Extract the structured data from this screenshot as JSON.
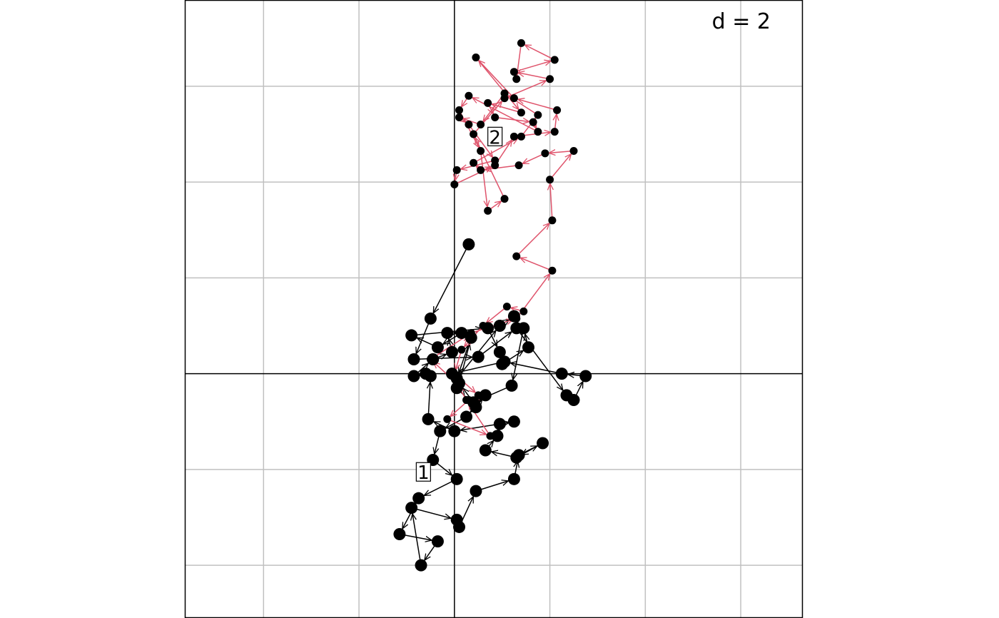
{
  "chart_data": {
    "type": "scatter",
    "grid_label": "d = 2",
    "grid": true,
    "grid_step": 2,
    "xlim": [
      -5.65,
      7.3
    ],
    "ylim": [
      -5.1,
      7.8
    ],
    "colors": {
      "group1": "#000000",
      "group2": "#DF536B",
      "grid": "#C0C0C0",
      "axis": "#000000",
      "frame": "#000000"
    },
    "group_labels": [
      {
        "text": "1",
        "x": -0.65,
        "y": -2.05
      },
      {
        "text": "2",
        "x": 0.85,
        "y": 4.95
      }
    ],
    "series": [
      {
        "group": "1",
        "points": [
          [
            0.3,
            2.7
          ],
          [
            -0.5,
            1.15
          ],
          [
            -0.85,
            0.3
          ],
          [
            0.5,
            0.35
          ],
          [
            1.3,
            0.95
          ],
          [
            2.35,
            -0.45
          ],
          [
            2.5,
            -0.55
          ],
          [
            2.75,
            -0.05
          ],
          [
            2.25,
            0.0
          ],
          [
            1.05,
            0.25
          ],
          [
            -0.05,
            0.0
          ],
          [
            0.05,
            -0.3
          ],
          [
            0.45,
            -0.7
          ],
          [
            0.65,
            -0.45
          ],
          [
            0.25,
            -0.9
          ],
          [
            -0.3,
            -1.2
          ],
          [
            -0.45,
            -1.8
          ],
          [
            0.05,
            -2.2
          ],
          [
            -0.75,
            -2.6
          ],
          [
            -1.15,
            -3.35
          ],
          [
            -0.35,
            -3.5
          ],
          [
            -0.7,
            -4.0
          ],
          [
            -0.9,
            -2.8
          ],
          [
            0.05,
            -3.05
          ],
          [
            0.1,
            -3.2
          ],
          [
            0.45,
            -2.45
          ],
          [
            1.25,
            -2.2
          ],
          [
            1.35,
            -1.7
          ],
          [
            1.85,
            -1.45
          ],
          [
            1.3,
            -1.75
          ],
          [
            0.65,
            -1.6
          ],
          [
            0.9,
            -1.3
          ],
          [
            0.95,
            -1.05
          ],
          [
            1.25,
            -1.0
          ],
          [
            0.0,
            -1.2
          ],
          [
            -0.55,
            -0.95
          ],
          [
            -0.5,
            -0.05
          ],
          [
            -0.6,
            0.0
          ],
          [
            -0.85,
            -0.05
          ],
          [
            -0.45,
            0.3
          ],
          [
            -0.05,
            0.45
          ],
          [
            -0.15,
            0.85
          ],
          [
            0.15,
            0.85
          ],
          [
            -0.35,
            0.55
          ],
          [
            -0.9,
            0.8
          ],
          [
            0.7,
            0.95
          ],
          [
            0.95,
            0.45
          ],
          [
            1.0,
            0.2
          ],
          [
            1.55,
            0.55
          ],
          [
            1.45,
            0.95
          ],
          [
            1.2,
            -0.25
          ],
          [
            0.4,
            -0.6
          ],
          [
            0.1,
            -0.2
          ],
          [
            0.35,
            0.75
          ],
          [
            0.05,
            -0.1
          ],
          [
            0.95,
            1.0
          ],
          [
            1.25,
            1.2
          ]
        ]
      },
      {
        "group": "2",
        "points": [
          [
            1.45,
            1.3
          ],
          [
            1.1,
            1.4
          ],
          [
            0.6,
            1.0
          ],
          [
            0.15,
            0.5
          ],
          [
            0.0,
            0.0
          ],
          [
            0.5,
            -0.45
          ],
          [
            0.65,
            -0.45
          ],
          [
            0.3,
            -0.55
          ],
          [
            -0.15,
            -0.95
          ],
          [
            0.75,
            -1.3
          ],
          [
            0.25,
            -0.55
          ],
          [
            0.05,
            -0.2
          ],
          [
            -0.5,
            0.3
          ],
          [
            0.35,
            0.85
          ],
          [
            1.3,
            1.15
          ],
          [
            2.05,
            2.15
          ],
          [
            1.3,
            2.45
          ],
          [
            2.05,
            3.2
          ],
          [
            2.0,
            4.05
          ],
          [
            2.5,
            4.65
          ],
          [
            1.9,
            4.6
          ],
          [
            1.35,
            4.35
          ],
          [
            0.55,
            4.25
          ],
          [
            0.4,
            4.4
          ],
          [
            1.4,
            4.95
          ],
          [
            1.75,
            5.4
          ],
          [
            1.05,
            5.85
          ],
          [
            0.55,
            5.2
          ],
          [
            0.1,
            5.35
          ],
          [
            0.3,
            5.2
          ],
          [
            0.85,
            4.45
          ],
          [
            0.05,
            4.25
          ],
          [
            0.0,
            3.95
          ],
          [
            0.85,
            4.35
          ],
          [
            1.25,
            4.95
          ],
          [
            2.1,
            5.05
          ],
          [
            2.15,
            5.5
          ],
          [
            1.25,
            5.75
          ],
          [
            0.45,
            6.6
          ],
          [
            1.4,
            5.45
          ],
          [
            0.7,
            5.65
          ],
          [
            0.85,
            5.35
          ],
          [
            1.65,
            5.25
          ],
          [
            1.75,
            5.05
          ],
          [
            0.3,
            5.8
          ],
          [
            0.1,
            5.5
          ],
          [
            0.55,
            4.65
          ],
          [
            0.7,
            3.4
          ],
          [
            1.05,
            3.65
          ],
          [
            0.4,
            5.0
          ],
          [
            1.05,
            5.75
          ],
          [
            2.0,
            6.15
          ],
          [
            1.25,
            6.3
          ],
          [
            2.1,
            6.55
          ],
          [
            1.4,
            6.9
          ],
          [
            1.3,
            6.15
          ]
        ]
      }
    ]
  }
}
